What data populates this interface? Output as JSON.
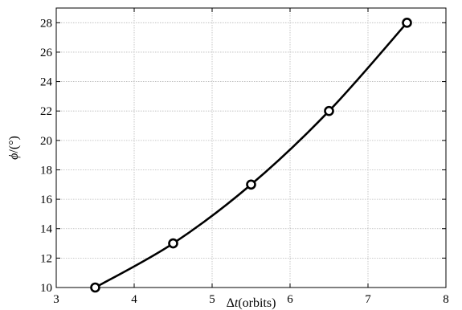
{
  "chart_data": {
    "type": "line",
    "xlabel_prefix": "Δ",
    "xlabel_var": "t",
    "xlabel_unit": "(orbits)",
    "ylabel_var": "ϕ",
    "ylabel_unit": "/(°)",
    "xlim": [
      3,
      8
    ],
    "ylim": [
      10,
      29
    ],
    "xticks": [
      "3",
      "4",
      "5",
      "6",
      "7",
      "8"
    ],
    "yticks": [
      "10",
      "12",
      "14",
      "16",
      "18",
      "20",
      "22",
      "24",
      "26",
      "28"
    ],
    "grid": true,
    "series": [
      {
        "x": [
          3.5,
          4.5,
          5.5,
          6.5,
          7.5
        ],
        "y": [
          10,
          13,
          17,
          22,
          28
        ],
        "marker": "circle",
        "color": "#000000"
      }
    ]
  }
}
